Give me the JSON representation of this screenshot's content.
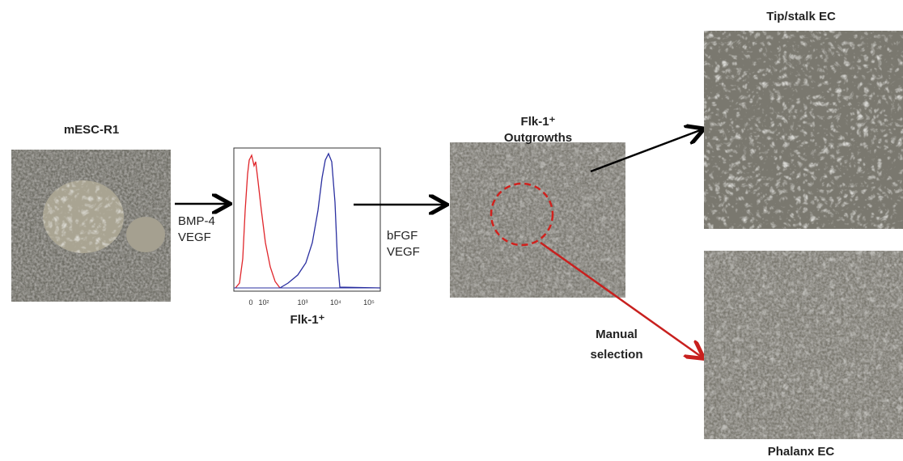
{
  "mesc": {
    "title": "mESC-R1"
  },
  "differentiation": {
    "factors": [
      "BMP-4",
      "VEGF"
    ]
  },
  "histogram": {
    "xlabel": "Flk-1⁺",
    "xticks": [
      "0",
      "10²",
      "10³",
      "10⁴",
      "10⁵"
    ]
  },
  "expansion": {
    "factors": [
      "bFGF",
      "VEGF"
    ]
  },
  "outgrowths": {
    "title": [
      "Flk-1⁺",
      "Outgrowths"
    ]
  },
  "selection": {
    "label": [
      "Manual",
      "selection"
    ]
  },
  "tip_stalk": {
    "title": "Tip/stalk EC"
  },
  "phalanx": {
    "title": "Phalanx EC"
  }
}
